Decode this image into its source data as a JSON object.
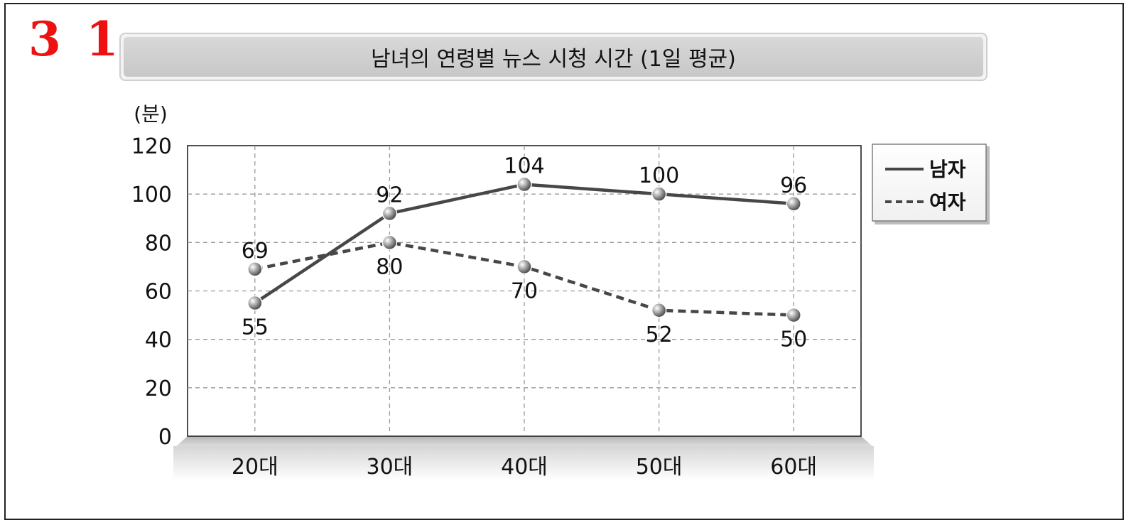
{
  "question_number": "3 1",
  "chart_data": {
    "type": "line",
    "title": "남녀의 연령별 뉴스 시청 시간 (1일 평균)",
    "ylabel": "(분)",
    "xlabel": "",
    "categories": [
      "20대",
      "30대",
      "40대",
      "50대",
      "60대"
    ],
    "ylim": [
      0,
      120
    ],
    "yticks": [
      0,
      20,
      40,
      60,
      80,
      100,
      120
    ],
    "grid": true,
    "legend_position": "right",
    "series": [
      {
        "name": "남자",
        "style": "solid",
        "values": [
          55,
          92,
          104,
          100,
          96
        ],
        "labels": [
          "55",
          "92",
          "104",
          "100",
          "96"
        ]
      },
      {
        "name": "여자",
        "style": "dashed",
        "values": [
          69,
          80,
          70,
          52,
          50
        ],
        "labels": [
          "69",
          "80",
          "70",
          "52",
          "50"
        ]
      }
    ]
  }
}
